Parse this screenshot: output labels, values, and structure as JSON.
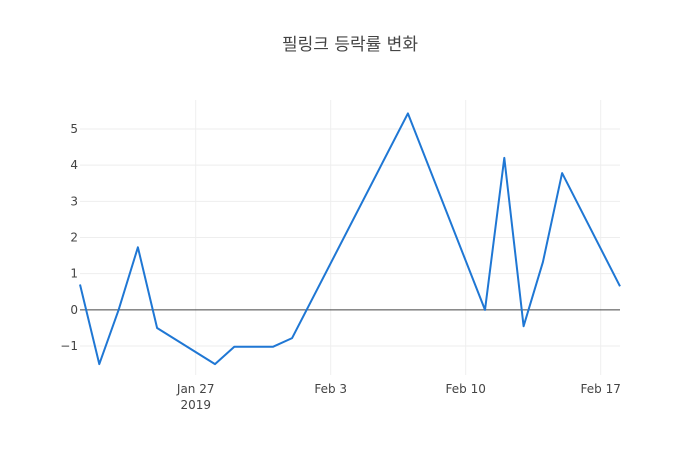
{
  "chart_data": {
    "type": "line",
    "title": "필링크 등락률 변화",
    "xlabel": "",
    "ylabel": "",
    "x_range": [
      "2019-01-21",
      "2019-02-18"
    ],
    "ylim": [
      -1.8,
      5.8
    ],
    "y_ticks": [
      5,
      4,
      3,
      2,
      1,
      0,
      -1
    ],
    "y_tick_labels": [
      "5",
      "4",
      "3",
      "2",
      "1",
      "0",
      "−1"
    ],
    "x_ticks": [
      {
        "date": "2019-01-27",
        "label": "Jan 27",
        "sublabel": "2019"
      },
      {
        "date": "2019-02-03",
        "label": "Feb 3",
        "sublabel": ""
      },
      {
        "date": "2019-02-10",
        "label": "Feb 10",
        "sublabel": ""
      },
      {
        "date": "2019-02-17",
        "label": "Feb 17",
        "sublabel": ""
      }
    ],
    "grid": true,
    "line_color": "#1f77d4",
    "series": [
      {
        "x": [
          "2019-01-21",
          "2019-01-22",
          "2019-01-23",
          "2019-01-24",
          "2019-01-25",
          "2019-01-28",
          "2019-01-29",
          "2019-01-30",
          "2019-01-31",
          "2019-02-01",
          "2019-02-07",
          "2019-02-11",
          "2019-02-12",
          "2019-02-13",
          "2019-02-14",
          "2019-02-15",
          "2019-02-18"
        ],
        "values": [
          0.7,
          -1.5,
          0.0,
          1.73,
          -0.5,
          -1.5,
          -1.02,
          -1.02,
          -1.02,
          -0.78,
          5.43,
          0.0,
          4.2,
          -0.45,
          1.32,
          3.78,
          0.65
        ]
      }
    ]
  }
}
